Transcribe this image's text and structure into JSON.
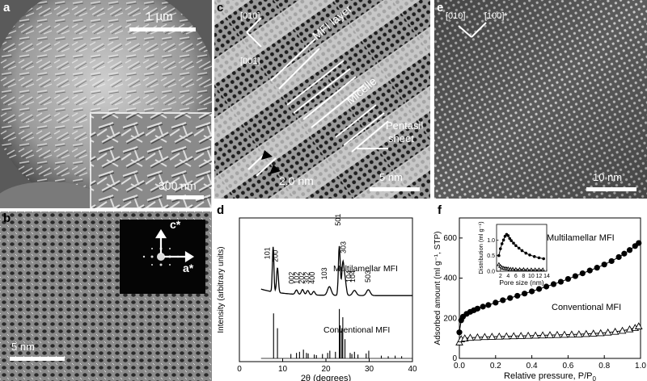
{
  "panels": {
    "a": {
      "letter": "a",
      "scale_large": "1 µm",
      "scale_inset": "300 nm"
    },
    "b": {
      "letter": "b",
      "scale": "5 nm",
      "axis_c": "c*",
      "axis_a": "a*"
    },
    "c": {
      "letter": "c",
      "dir1": "[010]",
      "dir2": "[001]",
      "label_layer": "MFI layer",
      "label_micelle": "Micelle",
      "label_sheet_1": "Pentasil",
      "label_sheet_2": "sheet",
      "spacing": "2.0 nm",
      "scale": "5 nm"
    },
    "e": {
      "letter": "e",
      "dir1": "[010]",
      "dir2": "[100]*",
      "scale": "10 nm"
    },
    "d": {
      "letter": "d"
    },
    "f": {
      "letter": "f"
    }
  },
  "chart_data": [
    {
      "type": "line",
      "panel": "d",
      "xlabel": "2θ (degrees)",
      "ylabel": "Intensity (arbitrary units)",
      "xlim": [
        0,
        40
      ],
      "xticks": [
        0,
        10,
        20,
        30,
        40
      ],
      "grid": false,
      "series": [
        {
          "name": "Multilamellar MFI",
          "peaks": [
            {
              "x": 7.8,
              "h": 0.62,
              "w": 0.25
            },
            {
              "x": 8.8,
              "h": 0.34,
              "w": 0.3
            },
            {
              "x": 13.2,
              "h": 0.06,
              "w": 0.4
            },
            {
              "x": 14.6,
              "h": 0.07,
              "w": 0.4
            },
            {
              "x": 15.8,
              "h": 0.06,
              "w": 0.4
            },
            {
              "x": 17.2,
              "h": 0.05,
              "w": 0.4
            },
            {
              "x": 20.8,
              "h": 0.12,
              "w": 0.6
            },
            {
              "x": 23.1,
              "h": 0.68,
              "w": 0.3
            },
            {
              "x": 23.9,
              "h": 0.42,
              "w": 0.35
            },
            {
              "x": 24.4,
              "h": 0.22,
              "w": 0.4
            },
            {
              "x": 26.6,
              "h": 0.07,
              "w": 0.6
            },
            {
              "x": 29.8,
              "h": 0.08,
              "w": 0.6
            }
          ]
        },
        {
          "name": "Conventional MFI",
          "peaks": [
            {
              "x": 7.9,
              "h": 0.82
            },
            {
              "x": 8.8,
              "h": 0.55
            },
            {
              "x": 11.9,
              "h": 0.08
            },
            {
              "x": 13.2,
              "h": 0.1
            },
            {
              "x": 13.9,
              "h": 0.12
            },
            {
              "x": 14.8,
              "h": 0.16
            },
            {
              "x": 15.5,
              "h": 0.1
            },
            {
              "x": 15.9,
              "h": 0.09
            },
            {
              "x": 17.3,
              "h": 0.07
            },
            {
              "x": 17.8,
              "h": 0.06
            },
            {
              "x": 19.2,
              "h": 0.08
            },
            {
              "x": 20.4,
              "h": 0.1
            },
            {
              "x": 20.9,
              "h": 0.14
            },
            {
              "x": 22.2,
              "h": 0.12
            },
            {
              "x": 23.1,
              "h": 0.9
            },
            {
              "x": 23.3,
              "h": 0.6
            },
            {
              "x": 23.7,
              "h": 0.55
            },
            {
              "x": 23.9,
              "h": 0.75
            },
            {
              "x": 24.4,
              "h": 0.35
            },
            {
              "x": 25.6,
              "h": 0.1
            },
            {
              "x": 26.0,
              "h": 0.08
            },
            {
              "x": 26.6,
              "h": 0.12
            },
            {
              "x": 27.4,
              "h": 0.07
            },
            {
              "x": 29.3,
              "h": 0.09
            },
            {
              "x": 29.9,
              "h": 0.14
            },
            {
              "x": 32.8,
              "h": 0.05
            },
            {
              "x": 34.4,
              "h": 0.04
            },
            {
              "x": 36.0,
              "h": 0.05
            },
            {
              "x": 37.5,
              "h": 0.04
            }
          ]
        }
      ],
      "annotations": [
        {
          "text": "101",
          "x": 7.0,
          "y": 0.52
        },
        {
          "text": "200",
          "x": 8.9,
          "y": 0.48
        },
        {
          "text": "002",
          "x": 12.6,
          "y": 0.18
        },
        {
          "text": "102",
          "x": 13.8,
          "y": 0.18
        },
        {
          "text": "202",
          "x": 15.0,
          "y": 0.18
        },
        {
          "text": "302",
          "x": 16.2,
          "y": 0.18
        },
        {
          "text": "400",
          "x": 17.4,
          "y": 0.18
        },
        {
          "text": "103",
          "x": 20.2,
          "y": 0.24
        },
        {
          "text": "501",
          "x": 23.4,
          "y": 0.98
        },
        {
          "text": "303",
          "x": 24.6,
          "y": 0.6
        },
        {
          "text": "104",
          "x": 25.9,
          "y": 0.2
        },
        {
          "text": "104",
          "x": 26.7,
          "y": 0.2
        },
        {
          "text": "503",
          "x": 30.3,
          "y": 0.2
        }
      ]
    },
    {
      "type": "scatter",
      "panel": "f",
      "xlabel": "Relative pressure, P/P",
      "xlabel_sub": "0",
      "ylabel": "Adsorbed amount (ml g⁻¹, STP)",
      "xlim": [
        0,
        1.0
      ],
      "ylim": [
        0,
        700
      ],
      "xticks": [
        0,
        0.2,
        0.4,
        0.6,
        0.8,
        1.0
      ],
      "yticks": [
        0,
        200,
        400,
        600
      ],
      "grid": false,
      "series": [
        {
          "name": "Multilamellar MFI",
          "marker": "circle",
          "x": [
            0.0,
            0.01,
            0.02,
            0.04,
            0.06,
            0.08,
            0.1,
            0.13,
            0.16,
            0.2,
            0.24,
            0.28,
            0.32,
            0.36,
            0.4,
            0.44,
            0.48,
            0.52,
            0.56,
            0.6,
            0.64,
            0.68,
            0.72,
            0.76,
            0.8,
            0.84,
            0.88,
            0.91,
            0.94,
            0.97,
            0.99
          ],
          "y": [
            130,
            190,
            208,
            222,
            232,
            240,
            248,
            258,
            266,
            278,
            290,
            301,
            312,
            323,
            334,
            346,
            358,
            370,
            382,
            396,
            410,
            424,
            438,
            452,
            468,
            485,
            505,
            522,
            540,
            560,
            575
          ]
        },
        {
          "name": "Conventional MFI",
          "marker": "triangle",
          "x": [
            0.0,
            0.01,
            0.03,
            0.06,
            0.1,
            0.14,
            0.18,
            0.22,
            0.26,
            0.3,
            0.34,
            0.38,
            0.42,
            0.46,
            0.5,
            0.54,
            0.58,
            0.62,
            0.66,
            0.7,
            0.74,
            0.78,
            0.82,
            0.86,
            0.9,
            0.94,
            0.97,
            0.99
          ],
          "y": [
            80,
            96,
            100,
            103,
            105,
            107,
            108,
            109,
            110,
            111,
            112,
            113,
            114,
            115,
            116,
            117,
            118,
            119,
            120,
            122,
            124,
            126,
            129,
            133,
            138,
            145,
            152,
            160
          ]
        }
      ],
      "inset": {
        "xlabel": "Pore size (nm)",
        "ylabel": "Distribution (ml g⁻¹)",
        "xlim": [
          1,
          14
        ],
        "ylim": [
          0,
          1.5
        ],
        "xticks": [
          2,
          4,
          6,
          8,
          10,
          12,
          14
        ],
        "yticks": [
          0.0,
          0.5,
          1.0
        ],
        "series": [
          {
            "name": "Multilamellar MFI",
            "marker": "circle",
            "x": [
              1.6,
              2.0,
              2.4,
              2.8,
              3.2,
              3.6,
              4.0,
              4.4,
              4.8,
              5.4,
              6.0,
              6.8,
              7.6,
              8.6,
              9.6,
              10.8,
              12.0,
              13.2
            ],
            "y": [
              0.5,
              0.72,
              0.88,
              1.0,
              1.12,
              1.18,
              1.14,
              1.05,
              0.98,
              0.9,
              0.82,
              0.74,
              0.66,
              0.58,
              0.52,
              0.47,
              0.43,
              0.4
            ]
          },
          {
            "name": "Conventional MFI",
            "marker": "triangle",
            "x": [
              1.6,
              2.0,
              2.4,
              2.8,
              3.2,
              3.6,
              4.0,
              4.6,
              5.2,
              6.0,
              7.0,
              8.0,
              9.0,
              10.0,
              11.0,
              12.0,
              13.0
            ],
            "y": [
              0.22,
              0.16,
              0.12,
              0.1,
              0.09,
              0.08,
              0.08,
              0.07,
              0.07,
              0.06,
              0.06,
              0.06,
              0.05,
              0.05,
              0.05,
              0.05,
              0.05
            ]
          }
        ]
      }
    }
  ]
}
